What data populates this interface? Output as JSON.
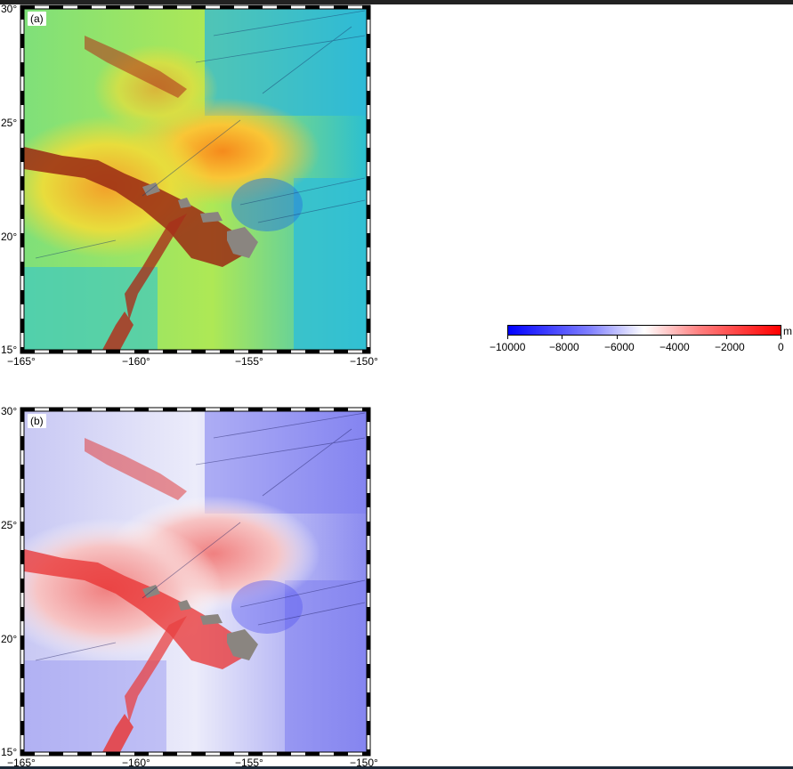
{
  "panels": [
    {
      "id": "a",
      "label": "(a)",
      "colormap": "turbo",
      "x_ticks": [
        "−165°",
        "−160°",
        "−155°",
        "−150°"
      ],
      "y_ticks": [
        "30°",
        "25°",
        "20°",
        "15°"
      ]
    },
    {
      "id": "b",
      "label": "(b)",
      "colormap": "polar",
      "x_ticks": [
        "−165°",
        "−160°",
        "−155°",
        "−150°"
      ],
      "y_ticks": [
        "30°",
        "25°",
        "20°",
        "15°"
      ]
    }
  ],
  "colorbar": {
    "ticks": [
      "−10000",
      "−8000",
      "−6000",
      "−4000",
      "−2000",
      "0"
    ],
    "unit": "m",
    "colors": [
      "#0000ff",
      "#ffffff",
      "#ff0000"
    ]
  },
  "colors": {
    "land": "#8a8580",
    "ridge": "#7a2b10"
  }
}
